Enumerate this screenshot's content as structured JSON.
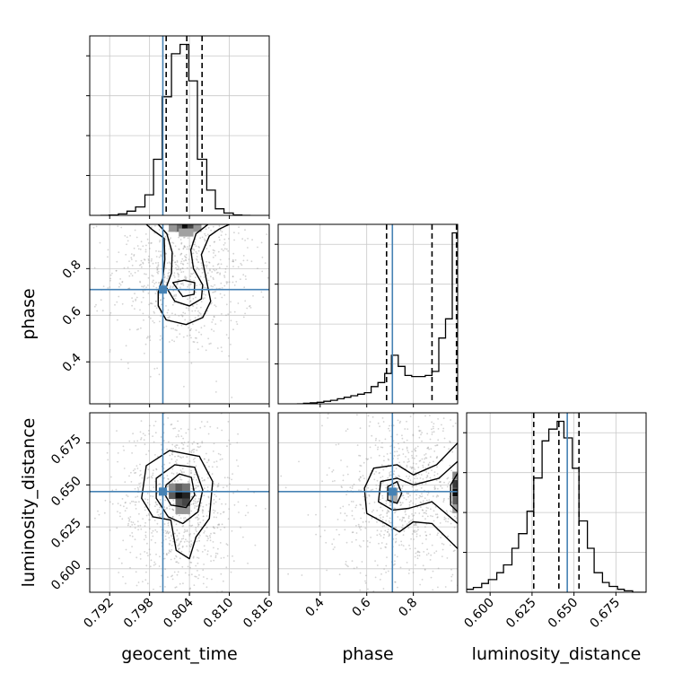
{
  "chart_data": {
    "type": "corner",
    "parameters": [
      "geocent_time",
      "phase",
      "luminosity_distance"
    ],
    "labels": {
      "geocent_time": "geocent_time",
      "phase": "phase",
      "luminosity_distance": "luminosity_distance"
    },
    "ranges": {
      "geocent_time": [
        0.789,
        0.816
      ],
      "phase": [
        0.22,
        0.99
      ],
      "luminosity_distance": [
        0.586,
        0.693
      ]
    },
    "ticks": {
      "geocent_time": [
        0.792,
        0.798,
        0.804,
        0.81,
        0.816
      ],
      "phase": [
        0.4,
        0.6,
        0.8
      ],
      "luminosity_distance": [
        0.6,
        0.625,
        0.65,
        0.675
      ]
    },
    "tick_labels": {
      "geocent_time": [
        "0.792",
        "0.798",
        "0.804",
        "0.810",
        "0.816"
      ],
      "phase": [
        "0.4",
        "0.6",
        "0.8"
      ],
      "luminosity_distance": [
        "0.600",
        "0.625",
        "0.650",
        "0.675"
      ]
    },
    "truths": {
      "geocent_time": 0.8,
      "phase": 0.71,
      "luminosity_distance": 0.646
    },
    "quantiles": {
      "geocent_time": [
        0.8005,
        0.8036,
        0.8059
      ],
      "phase": [
        0.685,
        0.88,
        0.985
      ],
      "luminosity_distance": [
        0.626,
        0.641,
        0.653
      ]
    },
    "histograms": {
      "geocent_time": {
        "edges": [
          0.7906,
          0.7919,
          0.7933,
          0.7946,
          0.7959,
          0.7973,
          0.7986,
          0.7999,
          0.8013,
          0.8026,
          0.8039,
          0.8052,
          0.8066,
          0.8079,
          0.8092,
          0.8106,
          0.8119,
          0.8132
        ],
        "counts": [
          0,
          0.3,
          1.5,
          4.5,
          9,
          22,
          60,
          127,
          173,
          183,
          144,
          60,
          27,
          7,
          2.5,
          0.5,
          0
        ]
      },
      "phase": {
        "edges": [
          0.3,
          0.329,
          0.358,
          0.387,
          0.416,
          0.445,
          0.474,
          0.503,
          0.532,
          0.561,
          0.59,
          0.619,
          0.648,
          0.677,
          0.706,
          0.735,
          0.764,
          0.793,
          0.822,
          0.851,
          0.88,
          0.909,
          0.938,
          0.967,
          0.99
        ],
        "counts": [
          0,
          0.5,
          1,
          1.5,
          2.5,
          3.5,
          5,
          6.5,
          8,
          9.5,
          11,
          17,
          21,
          30,
          48,
          37,
          28,
          27,
          27,
          28,
          32,
          65,
          84,
          169
        ]
      },
      "luminosity_distance": {
        "edges": [
          0.586,
          0.59,
          0.595,
          0.599,
          0.604,
          0.608,
          0.613,
          0.617,
          0.622,
          0.626,
          0.631,
          0.635,
          0.64,
          0.644,
          0.649,
          0.653,
          0.658,
          0.662,
          0.667,
          0.671,
          0.676,
          0.68,
          0.685,
          0.689,
          0.693
        ],
        "counts": [
          3,
          5,
          9,
          13,
          20,
          28,
          45,
          60,
          83,
          117,
          155,
          167,
          175,
          158,
          127,
          73,
          45,
          20,
          10,
          6,
          3,
          1.5,
          0,
          0
        ]
      }
    },
    "contours_2d": [
      {
        "x": "geocent_time",
        "y": "phase",
        "levels": [
          [
            [
              0.7975,
              0.99
            ],
            [
              0.7985,
              0.965
            ],
            [
              0.8002,
              0.93
            ],
            [
              0.8003,
              0.84
            ],
            [
              0.8,
              0.76
            ],
            [
              0.7993,
              0.7
            ],
            [
              0.7993,
              0.64
            ],
            [
              0.8005,
              0.58
            ],
            [
              0.8035,
              0.56
            ],
            [
              0.806,
              0.59
            ],
            [
              0.8072,
              0.66
            ],
            [
              0.8065,
              0.76
            ],
            [
              0.8058,
              0.86
            ],
            [
              0.807,
              0.94
            ],
            [
              0.8085,
              0.97
            ],
            [
              0.81,
              0.99
            ]
          ],
          [
            [
              0.7993,
              0.99
            ],
            [
              0.8006,
              0.95
            ],
            [
              0.8014,
              0.87
            ],
            [
              0.8013,
              0.78
            ],
            [
              0.8005,
              0.72
            ],
            [
              0.8018,
              0.66
            ],
            [
              0.804,
              0.64
            ],
            [
              0.8058,
              0.67
            ],
            [
              0.806,
              0.73
            ],
            [
              0.8046,
              0.8
            ],
            [
              0.8042,
              0.88
            ],
            [
              0.805,
              0.95
            ],
            [
              0.8068,
              0.99
            ]
          ],
          [
            [
              0.8015,
              0.74
            ],
            [
              0.803,
              0.68
            ],
            [
              0.8047,
              0.69
            ],
            [
              0.8048,
              0.74
            ],
            [
              0.8032,
              0.75
            ],
            [
              0.8015,
              0.74
            ]
          ]
        ],
        "density": [
          {
            "x": 0.8025,
            "y": 0.975,
            "v": 0.55
          },
          {
            "x": 0.8035,
            "y": 0.975,
            "v": 0.95
          },
          {
            "x": 0.8043,
            "y": 0.975,
            "v": 0.7
          },
          {
            "x": 0.8015,
            "y": 0.975,
            "v": 0.35
          },
          {
            "x": 0.8052,
            "y": 0.975,
            "v": 0.35
          },
          {
            "x": 0.803,
            "y": 0.955,
            "v": 0.3
          },
          {
            "x": 0.804,
            "y": 0.955,
            "v": 0.3
          }
        ]
      },
      {
        "x": "geocent_time",
        "y": "luminosity_distance",
        "levels": [
          [
            [
              0.7975,
              0.6615
            ],
            [
              0.801,
              0.6705
            ],
            [
              0.8055,
              0.667
            ],
            [
              0.8075,
              0.652
            ],
            [
              0.807,
              0.63
            ],
            [
              0.805,
              0.619
            ],
            [
              0.804,
              0.606
            ],
            [
              0.802,
              0.611
            ],
            [
              0.8012,
              0.629
            ],
            [
              0.7985,
              0.631
            ],
            [
              0.7968,
              0.642
            ]
          ],
          [
            [
              0.799,
              0.654
            ],
            [
              0.8018,
              0.662
            ],
            [
              0.8048,
              0.6605
            ],
            [
              0.806,
              0.647
            ],
            [
              0.8053,
              0.634
            ],
            [
              0.803,
              0.627
            ],
            [
              0.8008,
              0.631
            ],
            [
              0.799,
              0.642
            ]
          ],
          [
            [
              0.8005,
              0.65
            ],
            [
              0.8025,
              0.6565
            ],
            [
              0.8043,
              0.6545
            ],
            [
              0.8048,
              0.644
            ],
            [
              0.8035,
              0.6365
            ],
            [
              0.8012,
              0.638
            ],
            [
              0.8002,
              0.645
            ]
          ]
        ],
        "density": [
          {
            "x": 0.8015,
            "y": 0.6485,
            "v": 0.4
          },
          {
            "x": 0.8025,
            "y": 0.6485,
            "v": 0.6
          },
          {
            "x": 0.8035,
            "y": 0.6485,
            "v": 0.5
          },
          {
            "x": 0.8015,
            "y": 0.644,
            "v": 0.6
          },
          {
            "x": 0.8025,
            "y": 0.644,
            "v": 0.95
          },
          {
            "x": 0.8035,
            "y": 0.644,
            "v": 0.85
          },
          {
            "x": 0.8025,
            "y": 0.6395,
            "v": 0.6
          },
          {
            "x": 0.8035,
            "y": 0.6395,
            "v": 0.7
          },
          {
            "x": 0.8025,
            "y": 0.635,
            "v": 0.35
          },
          {
            "x": 0.8035,
            "y": 0.635,
            "v": 0.35
          }
        ]
      },
      {
        "x": "phase",
        "y": "luminosity_distance",
        "levels": [
          [
            [
              0.99,
              0.675
            ],
            [
              0.9,
              0.662
            ],
            [
              0.8,
              0.656
            ],
            [
              0.73,
              0.662
            ],
            [
              0.63,
              0.66
            ],
            [
              0.59,
              0.648
            ],
            [
              0.6,
              0.633
            ],
            [
              0.68,
              0.627
            ],
            [
              0.74,
              0.622
            ],
            [
              0.8,
              0.628
            ],
            [
              0.88,
              0.627
            ],
            [
              0.99,
              0.612
            ]
          ],
          [
            [
              0.99,
              0.664
            ],
            [
              0.91,
              0.654
            ],
            [
              0.8,
              0.65
            ],
            [
              0.73,
              0.654
            ],
            [
              0.66,
              0.652
            ],
            [
              0.65,
              0.64
            ],
            [
              0.71,
              0.635
            ],
            [
              0.78,
              0.636
            ],
            [
              0.88,
              0.64
            ],
            [
              0.99,
              0.627
            ]
          ],
          [
            [
              0.69,
              0.649
            ],
            [
              0.73,
              0.652
            ],
            [
              0.75,
              0.645
            ],
            [
              0.73,
              0.639
            ],
            [
              0.69,
              0.641
            ],
            [
              0.69,
              0.649
            ]
          ],
          [
            [
              0.99,
              0.657
            ],
            [
              0.96,
              0.65
            ],
            [
              0.96,
              0.638
            ],
            [
              0.99,
              0.634
            ]
          ]
        ],
        "density": [
          {
            "x": 0.985,
            "y": 0.6555,
            "v": 0.4
          },
          {
            "x": 0.985,
            "y": 0.6505,
            "v": 0.75
          },
          {
            "x": 0.985,
            "y": 0.6455,
            "v": 0.95
          },
          {
            "x": 0.985,
            "y": 0.6405,
            "v": 0.6
          },
          {
            "x": 0.985,
            "y": 0.6355,
            "v": 0.3
          },
          {
            "x": 0.715,
            "y": 0.6455,
            "v": 0.35
          },
          {
            "x": 0.715,
            "y": 0.6415,
            "v": 0.25
          }
        ]
      }
    ],
    "grid": true,
    "colors": {
      "truth": "#4682b4",
      "hist": "#000000",
      "scatter": "#9e9e9e",
      "grid": "#c8c8c8"
    }
  }
}
